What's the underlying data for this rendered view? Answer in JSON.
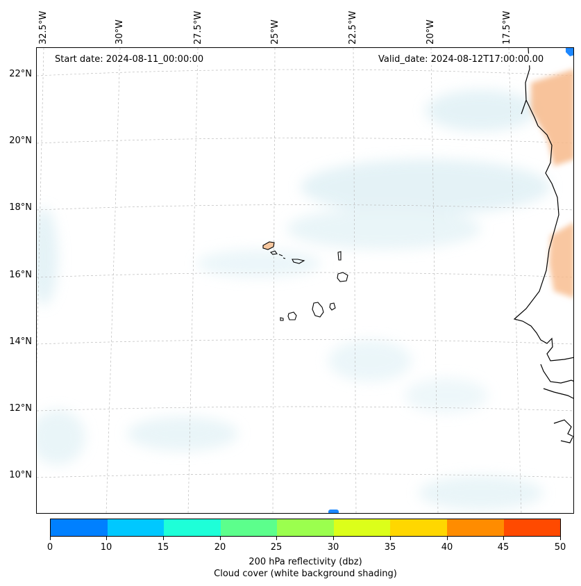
{
  "map": {
    "start_date": "Start date: 2024-08-11_00:00:00",
    "valid_date": "Valid_date: 2024-08-12T17:00:00.00",
    "lon_labels": [
      "32.5°W",
      "30°W",
      "27.5°W",
      "25°W",
      "22.5°W",
      "20°W",
      "17.5°W"
    ],
    "lat_labels": [
      "22°N",
      "20°N",
      "18°N",
      "16°N",
      "14°N",
      "12°N",
      "10°N"
    ],
    "coastline_color": "#000000",
    "land_warm_color": "#f7b98a",
    "cloud_color": "#cfe8f0",
    "gridline_color": "#bbbbbb"
  },
  "colorbar": {
    "colors": [
      "#0080ff",
      "#00c8ff",
      "#1effd8",
      "#5cff8c",
      "#9bff4e",
      "#dcff1a",
      "#ffd700",
      "#ff8c00",
      "#ff4a00"
    ],
    "ticks": [
      "0",
      "10",
      "15",
      "20",
      "25",
      "30",
      "35",
      "40",
      "45",
      "50"
    ],
    "label_line1": "200 hPa reflectivity (dbz)",
    "label_line2": "Cloud cover (white background shading)"
  }
}
